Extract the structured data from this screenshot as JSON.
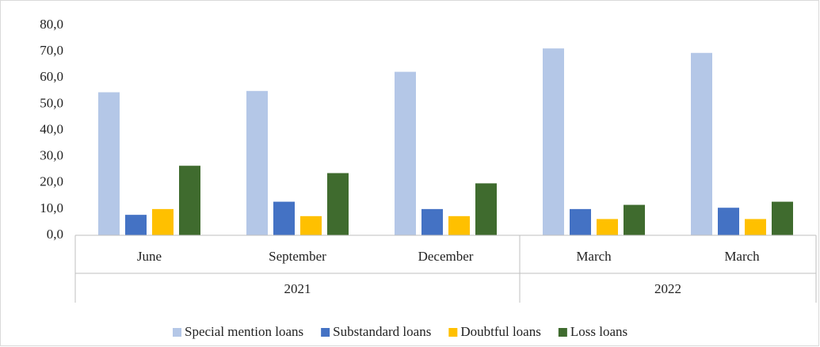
{
  "chart_data": {
    "type": "bar",
    "groups": [
      {
        "label": "2021",
        "categories": [
          "June",
          "September",
          "December"
        ]
      },
      {
        "label": "2022",
        "categories": [
          "March",
          "March"
        ]
      }
    ],
    "series": [
      {
        "name": "Special mention loans",
        "color": "#b4c7e7",
        "values": [
          54.5,
          55.0,
          62.3,
          71.2,
          69.5
        ]
      },
      {
        "name": "Substandard loans",
        "color": "#4472c4",
        "values": [
          7.8,
          12.8,
          10.0,
          10.0,
          10.5
        ]
      },
      {
        "name": "Doubtful loans",
        "color": "#ffc000",
        "values": [
          10.0,
          7.3,
          7.3,
          6.2,
          6.2
        ]
      },
      {
        "name": "Loss loans",
        "color": "#3f6b2e",
        "values": [
          26.5,
          23.7,
          19.8,
          11.6,
          12.8
        ]
      }
    ],
    "ylim": [
      0,
      80
    ],
    "yticks": [
      {
        "value": 0,
        "label": "0,0"
      },
      {
        "value": 10,
        "label": "10,0"
      },
      {
        "value": 20,
        "label": "20,0"
      },
      {
        "value": 30,
        "label": "30,0"
      },
      {
        "value": 40,
        "label": "40,0"
      },
      {
        "value": 50,
        "label": "50,0"
      },
      {
        "value": 60,
        "label": "60,0"
      },
      {
        "value": 70,
        "label": "70,0"
      },
      {
        "value": 80,
        "label": "80,0"
      }
    ],
    "grid": false
  }
}
